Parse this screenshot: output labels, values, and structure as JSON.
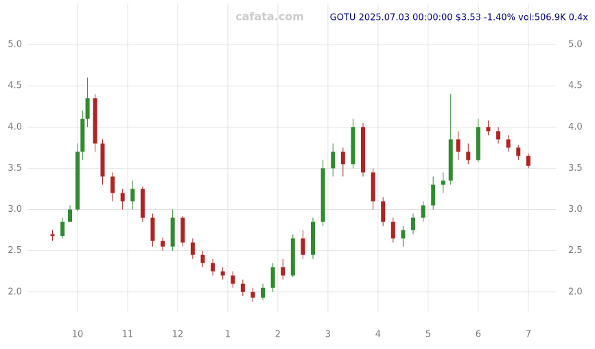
{
  "chart_data": {
    "type": "candlestick",
    "watermark": "cafata.com",
    "title": "GOTU 2025.07.03 00:00:00 $3.53 -1.40% vol:506.9K 0.4x",
    "up_color": "#2e8b2e",
    "down_color": "#b22222",
    "x": [
      9.5,
      9.7,
      9.85,
      10.0,
      10.1,
      10.2,
      10.35,
      10.5,
      10.7,
      10.9,
      11.1,
      11.3,
      11.5,
      11.7,
      11.9,
      12.1,
      12.3,
      12.5,
      12.7,
      12.9,
      13.1,
      13.3,
      13.5,
      13.7,
      13.9,
      14.1,
      14.3,
      14.5,
      14.7,
      14.9,
      15.1,
      15.3,
      15.5,
      15.7,
      15.9,
      16.1,
      16.3,
      16.5,
      16.7,
      16.9,
      17.1,
      17.3,
      17.45,
      17.6,
      17.8,
      18.0,
      18.2,
      18.4,
      18.6,
      18.8,
      19.0
    ],
    "open": [
      2.7,
      2.68,
      2.85,
      3.0,
      3.7,
      4.1,
      4.35,
      3.8,
      3.4,
      3.2,
      3.1,
      3.25,
      2.9,
      2.62,
      2.55,
      2.9,
      2.6,
      2.45,
      2.35,
      2.25,
      2.2,
      2.1,
      2.0,
      1.93,
      2.05,
      2.3,
      2.2,
      2.65,
      2.45,
      2.85,
      3.5,
      3.7,
      3.55,
      4.0,
      3.45,
      3.1,
      2.85,
      2.65,
      2.75,
      2.9,
      3.05,
      3.3,
      3.35,
      3.85,
      3.7,
      3.6,
      4.0,
      3.95,
      3.85,
      3.75,
      3.65
    ],
    "high": [
      2.75,
      2.9,
      3.05,
      3.8,
      4.2,
      4.6,
      4.4,
      3.85,
      3.45,
      3.25,
      3.35,
      3.28,
      2.95,
      2.66,
      3.0,
      2.92,
      2.65,
      2.5,
      2.4,
      2.3,
      2.25,
      2.15,
      2.05,
      2.1,
      2.35,
      2.4,
      2.7,
      2.75,
      2.9,
      3.6,
      3.8,
      3.75,
      4.1,
      4.05,
      3.5,
      3.15,
      2.9,
      2.8,
      2.95,
      3.1,
      3.4,
      3.45,
      4.4,
      3.95,
      3.8,
      4.1,
      4.08,
      4.0,
      3.9,
      3.78,
      3.68
    ],
    "low": [
      2.62,
      2.65,
      2.85,
      2.98,
      3.6,
      4.0,
      3.7,
      3.3,
      3.1,
      3.0,
      3.0,
      2.85,
      2.55,
      2.5,
      2.5,
      2.55,
      2.4,
      2.3,
      2.2,
      2.15,
      2.05,
      1.95,
      1.88,
      1.9,
      2.0,
      2.15,
      2.18,
      2.4,
      2.4,
      2.8,
      3.4,
      3.4,
      3.5,
      3.4,
      3.0,
      2.8,
      2.6,
      2.55,
      2.7,
      2.85,
      3.0,
      3.2,
      3.3,
      3.6,
      3.55,
      3.58,
      3.9,
      3.8,
      3.7,
      3.6,
      3.5
    ],
    "close": [
      2.68,
      2.85,
      3.0,
      3.7,
      4.1,
      4.35,
      3.8,
      3.4,
      3.2,
      3.1,
      3.25,
      2.9,
      2.62,
      2.55,
      2.9,
      2.6,
      2.45,
      2.35,
      2.25,
      2.2,
      2.1,
      2.0,
      1.93,
      2.05,
      2.3,
      2.2,
      2.65,
      2.45,
      2.85,
      3.5,
      3.7,
      3.55,
      4.0,
      3.45,
      3.1,
      2.85,
      2.65,
      2.75,
      2.9,
      3.05,
      3.3,
      3.35,
      3.85,
      3.7,
      3.6,
      4.0,
      3.95,
      3.85,
      3.75,
      3.65,
      3.53
    ],
    "xlim": [
      9.0,
      19.55
    ],
    "xticks": [
      {
        "value": 10,
        "label": "10"
      },
      {
        "value": 11,
        "label": "11"
      },
      {
        "value": 12,
        "label": "12"
      },
      {
        "value": 13,
        "label": "1"
      },
      {
        "value": 14,
        "label": "2"
      },
      {
        "value": 15,
        "label": "3"
      },
      {
        "value": 16,
        "label": "4"
      },
      {
        "value": 17,
        "label": "5"
      },
      {
        "value": 18,
        "label": "6"
      },
      {
        "value": 19,
        "label": "7"
      }
    ],
    "ylim": [
      1.84,
      5.5
    ],
    "yticks": [
      {
        "value": 2.0,
        "label": "2.0"
      },
      {
        "value": 2.5,
        "label": "2.5"
      },
      {
        "value": 3.0,
        "label": "3.0"
      },
      {
        "value": 3.5,
        "label": "3.5"
      },
      {
        "value": 4.0,
        "label": "4.0"
      },
      {
        "value": 4.5,
        "label": "4.5"
      },
      {
        "value": 5.0,
        "label": "5.0"
      }
    ],
    "grid": true
  }
}
